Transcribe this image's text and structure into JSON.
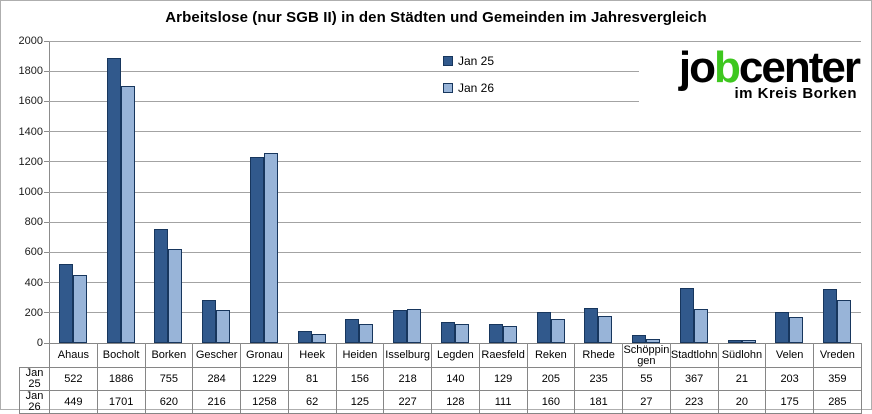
{
  "chart_data": {
    "type": "bar",
    "title": "Arbeitslose (nur SGB II) in den Städten und Gemeinden im Jahresvergleich",
    "categories": [
      "Ahaus",
      "Bocholt",
      "Borken",
      "Gescher",
      "Gronau",
      "Heek",
      "Heiden",
      "Isselburg",
      "Legden",
      "Raesfeld",
      "Reken",
      "Rhede",
      "Schöppingen",
      "Stadtlohn",
      "Südlohn",
      "Velen",
      "Vreden"
    ],
    "series": [
      {
        "name": "Jan 25",
        "color": "#31598c",
        "values": [
          522,
          1886,
          755,
          284,
          1229,
          81,
          156,
          218,
          140,
          129,
          205,
          235,
          55,
          367,
          21,
          203,
          359
        ]
      },
      {
        "name": "Jan 26",
        "color": "#98b4d8",
        "values": [
          449,
          1701,
          620,
          216,
          1258,
          62,
          125,
          227,
          128,
          111,
          160,
          181,
          27,
          223,
          20,
          175,
          285
        ]
      }
    ],
    "ylim": [
      0,
      2000
    ],
    "ytick_step": 200,
    "grid": true,
    "legend_position": "top-center",
    "bar_border_color": "#17365d",
    "gridline_color": "#a3a3a3",
    "data_table_shown": true
  },
  "logo": {
    "text_part1": "jo",
    "text_part2": "b",
    "text_part3": "center",
    "subtitle": "im Kreis Borken",
    "accent_color": "#3ec71f"
  }
}
